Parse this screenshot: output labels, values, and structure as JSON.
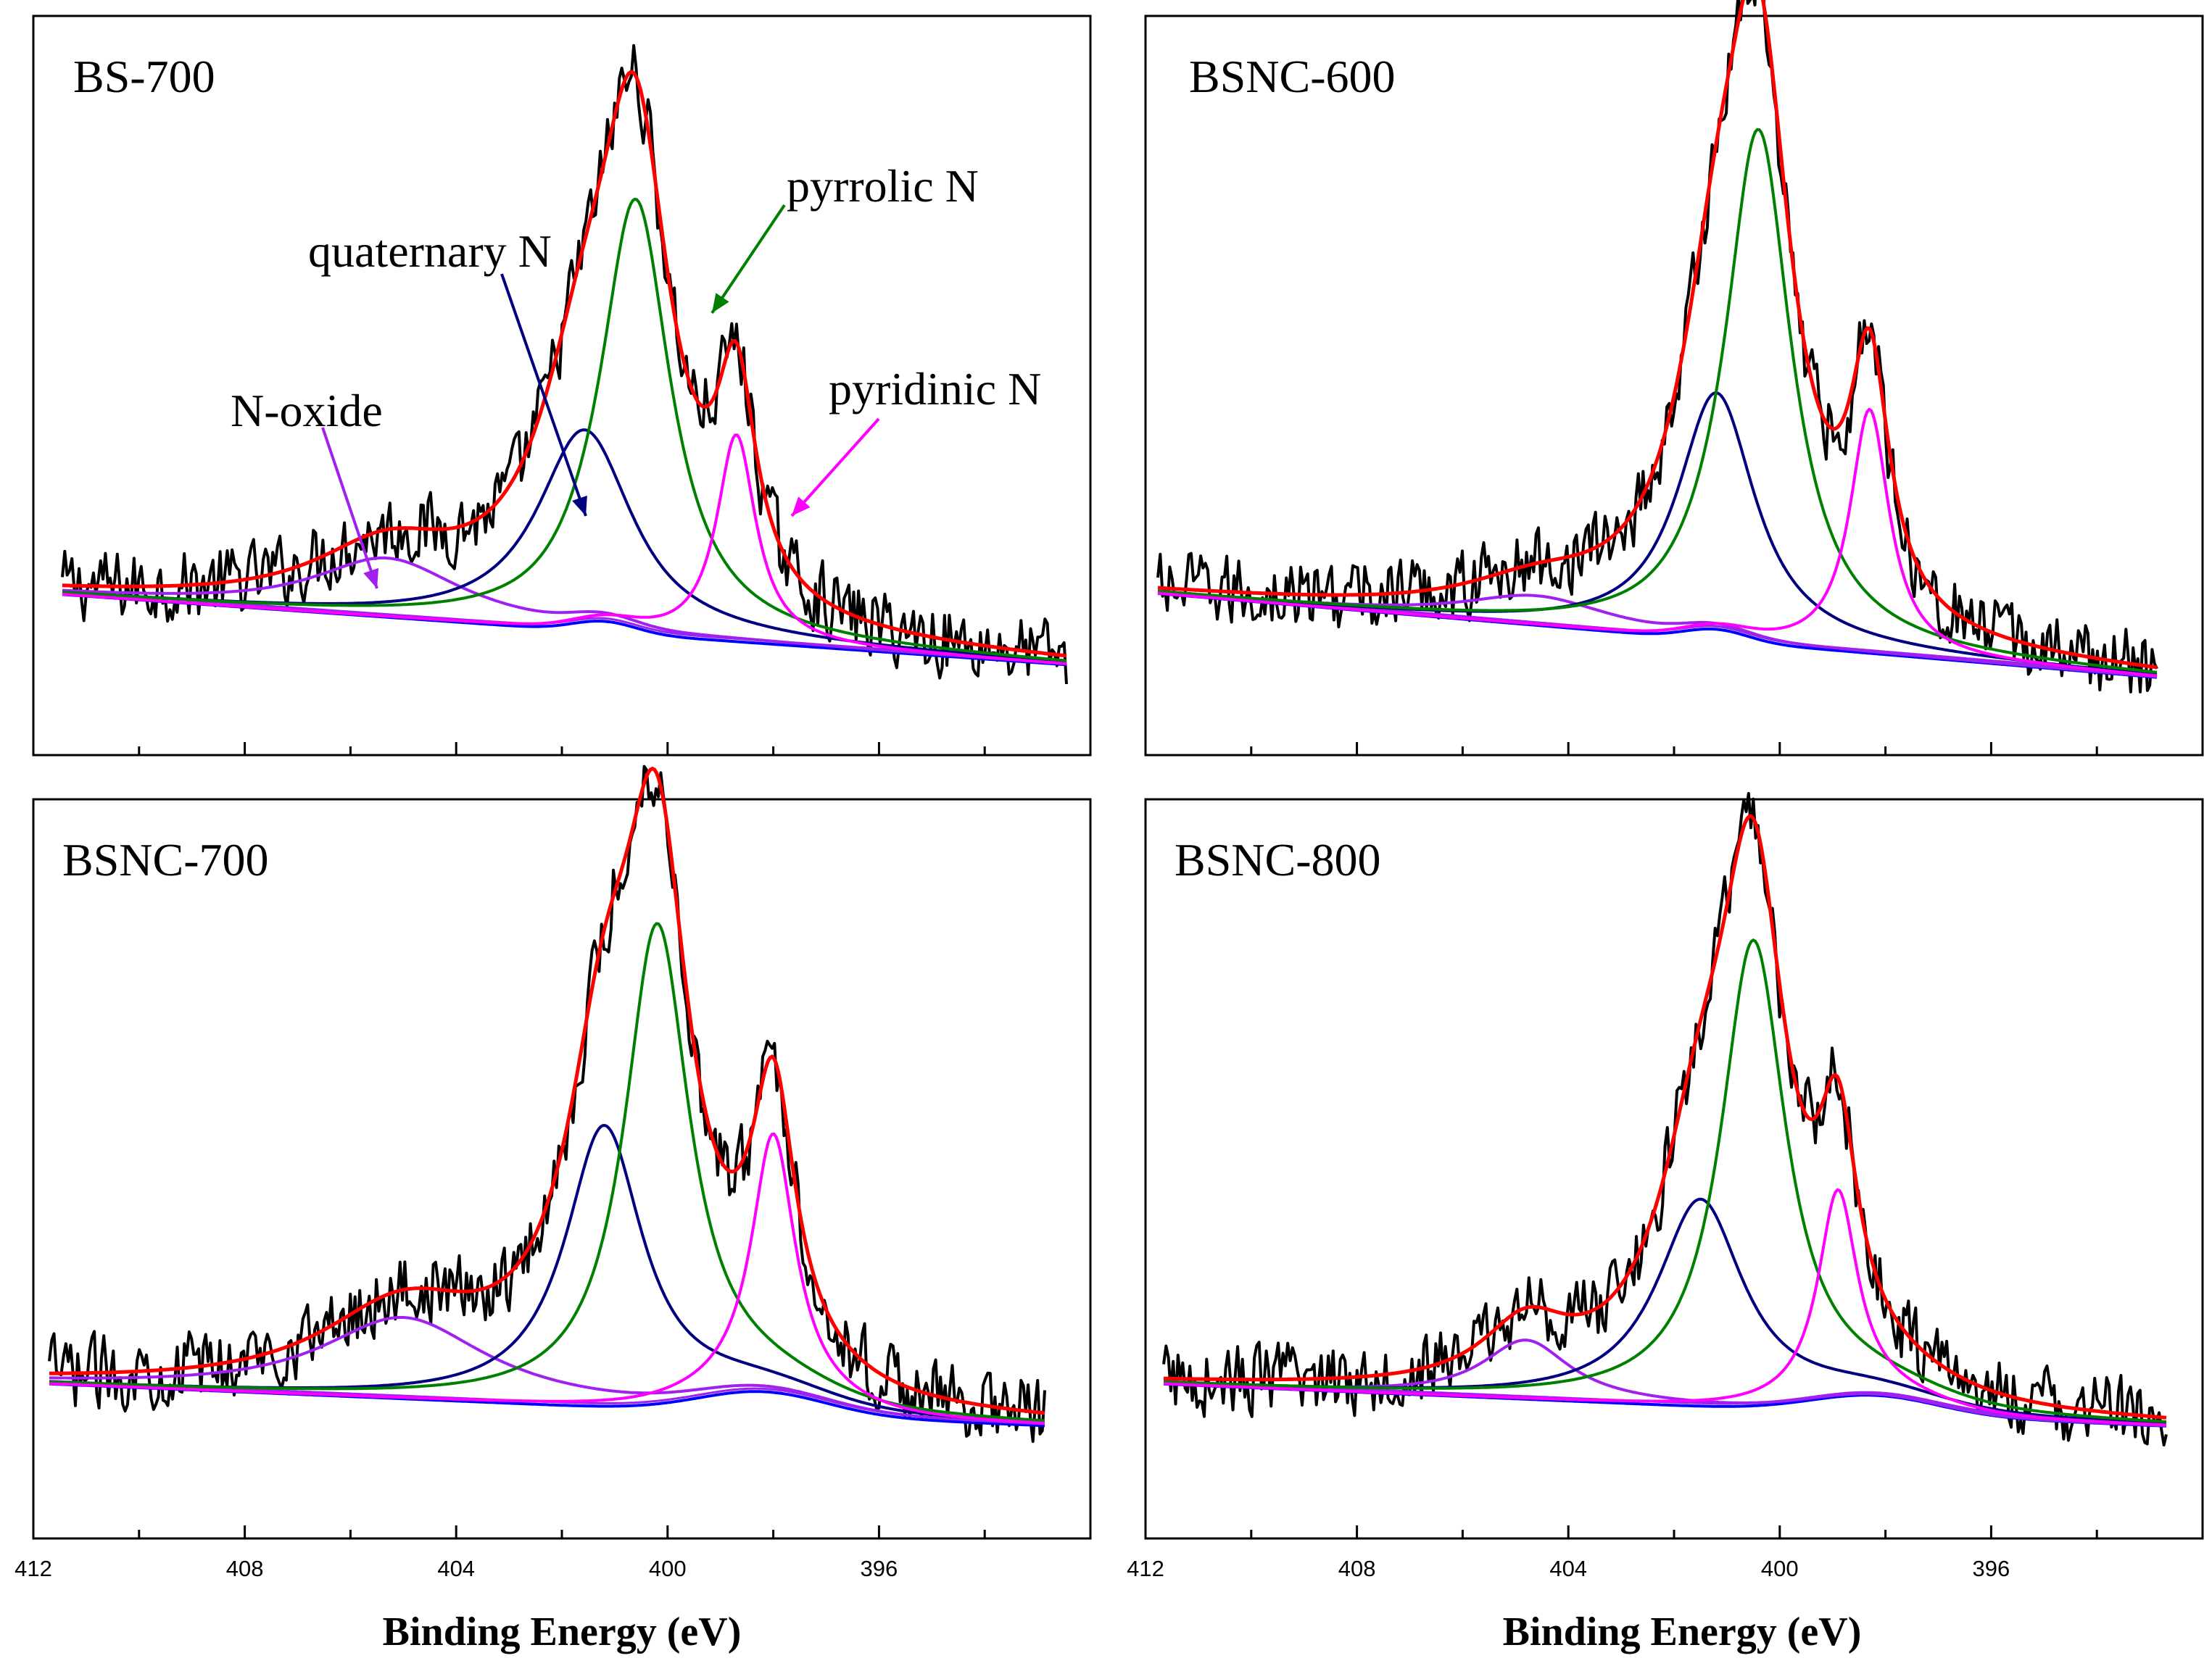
{
  "chart_data": {
    "type": "line",
    "figure": "N 1s XPS spectra deconvolution",
    "xlabel": "Binding Energy (eV)",
    "ylabel": "",
    "xlim": [
      412,
      392
    ],
    "x_reversed": true,
    "x_ticks": [
      412,
      408,
      404,
      400,
      396
    ],
    "components": [
      {
        "name": "N-oxide",
        "color": "#a020f0"
      },
      {
        "name": "quaternary N",
        "color": "#000080"
      },
      {
        "name": "pyrrolic N",
        "color": "#008000"
      },
      {
        "name": "pyridinic N",
        "color": "#ff00ff"
      },
      {
        "name": "envelope",
        "color": "#ff0000"
      },
      {
        "name": "raw",
        "color": "#000000"
      },
      {
        "name": "background",
        "color": "#0000ff"
      }
    ],
    "annotation_labels": {
      "n_oxide": "N-oxide",
      "quaternary": "quaternary N",
      "pyrrolic": "pyrrolic N",
      "pyridinic": "pyridinic N"
    },
    "panels": [
      {
        "id": "BS-700",
        "title": "BS-700",
        "baseline": [
          0.22,
          0.12
        ],
        "bumps": [
          [
            401.2,
            0.015,
            0.6
          ]
        ],
        "peaks": [
          {
            "name": "N-oxide",
            "center": 405.3,
            "height": 0.08,
            "width": 1.7
          },
          {
            "name": "quaternary N",
            "center": 401.6,
            "height": 0.26,
            "width": 1.1
          },
          {
            "name": "pyrrolic N",
            "center": 400.6,
            "height": 0.58,
            "width": 0.8
          },
          {
            "name": "pyridinic N",
            "center": 398.7,
            "height": 0.28,
            "width": 0.45
          }
        ]
      },
      {
        "id": "BSNC-600",
        "title": "BSNC-600",
        "baseline": [
          0.22,
          0.1
        ],
        "bumps": [
          [
            401.2,
            0.015,
            0.6
          ]
        ],
        "peaks": [
          {
            "name": "N-oxide",
            "center": 404.6,
            "height": 0.04,
            "width": 1.7
          },
          {
            "name": "quaternary N",
            "center": 401.2,
            "height": 0.32,
            "width": 0.9
          },
          {
            "name": "pyrrolic N",
            "center": 400.4,
            "height": 0.69,
            "width": 0.75
          },
          {
            "name": "pyridinic N",
            "center": 398.3,
            "height": 0.33,
            "width": 0.45
          }
        ]
      },
      {
        "id": "BSNC-700",
        "title": "BSNC-700",
        "baseline": [
          0.21,
          0.15
        ],
        "bumps": [
          [
            398.2,
            0.03,
            1.2
          ]
        ],
        "peaks": [
          {
            "name": "N-oxide",
            "center": 405.0,
            "height": 0.11,
            "width": 1.9
          },
          {
            "name": "quaternary N",
            "center": 401.2,
            "height": 0.38,
            "width": 0.9
          },
          {
            "name": "pyrrolic N",
            "center": 400.2,
            "height": 0.65,
            "width": 0.75
          },
          {
            "name": "pyridinic N",
            "center": 398.0,
            "height": 0.35,
            "width": 0.5
          }
        ]
      },
      {
        "id": "BSNC-800",
        "title": "BSNC-800",
        "baseline": [
          0.21,
          0.15
        ],
        "bumps": [
          [
            398.2,
            0.025,
            1.2
          ]
        ],
        "peaks": [
          {
            "name": "N-oxide",
            "center": 404.8,
            "height": 0.08,
            "width": 1.0
          },
          {
            "name": "quaternary N",
            "center": 401.5,
            "height": 0.28,
            "width": 1.0
          },
          {
            "name": "pyrrolic N",
            "center": 400.5,
            "height": 0.63,
            "width": 0.75
          },
          {
            "name": "pyridinic N",
            "center": 398.9,
            "height": 0.28,
            "width": 0.45
          }
        ]
      }
    ]
  }
}
